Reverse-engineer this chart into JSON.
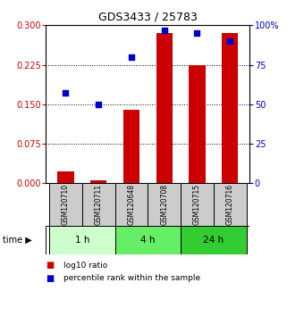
{
  "title": "GDS3433 / 25783",
  "samples": [
    "GSM120710",
    "GSM120711",
    "GSM120648",
    "GSM120708",
    "GSM120715",
    "GSM120716"
  ],
  "log10_ratio": [
    0.022,
    0.005,
    0.14,
    0.285,
    0.225,
    0.285
  ],
  "percentile_rank": [
    57,
    50,
    80,
    97,
    95,
    90
  ],
  "time_groups": [
    {
      "label": "1 h",
      "indices": [
        0,
        1
      ],
      "color": "#ccffcc"
    },
    {
      "label": "4 h",
      "indices": [
        2,
        3
      ],
      "color": "#66ee66"
    },
    {
      "label": "24 h",
      "indices": [
        4,
        5
      ],
      "color": "#33cc33"
    }
  ],
  "bar_color": "#cc0000",
  "dot_color": "#0000cc",
  "left_ylim": [
    0,
    0.3
  ],
  "right_ylim": [
    0,
    100
  ],
  "left_yticks": [
    0,
    0.075,
    0.15,
    0.225,
    0.3
  ],
  "right_yticks": [
    0,
    25,
    50,
    75,
    100
  ],
  "right_yticklabels": [
    "0",
    "25",
    "50",
    "75",
    "100%"
  ],
  "bg_color": "#ffffff",
  "label_log10": "log10 ratio",
  "label_percentile": "percentile rank within the sample",
  "sample_bg": "#cccccc",
  "bar_width": 0.5
}
